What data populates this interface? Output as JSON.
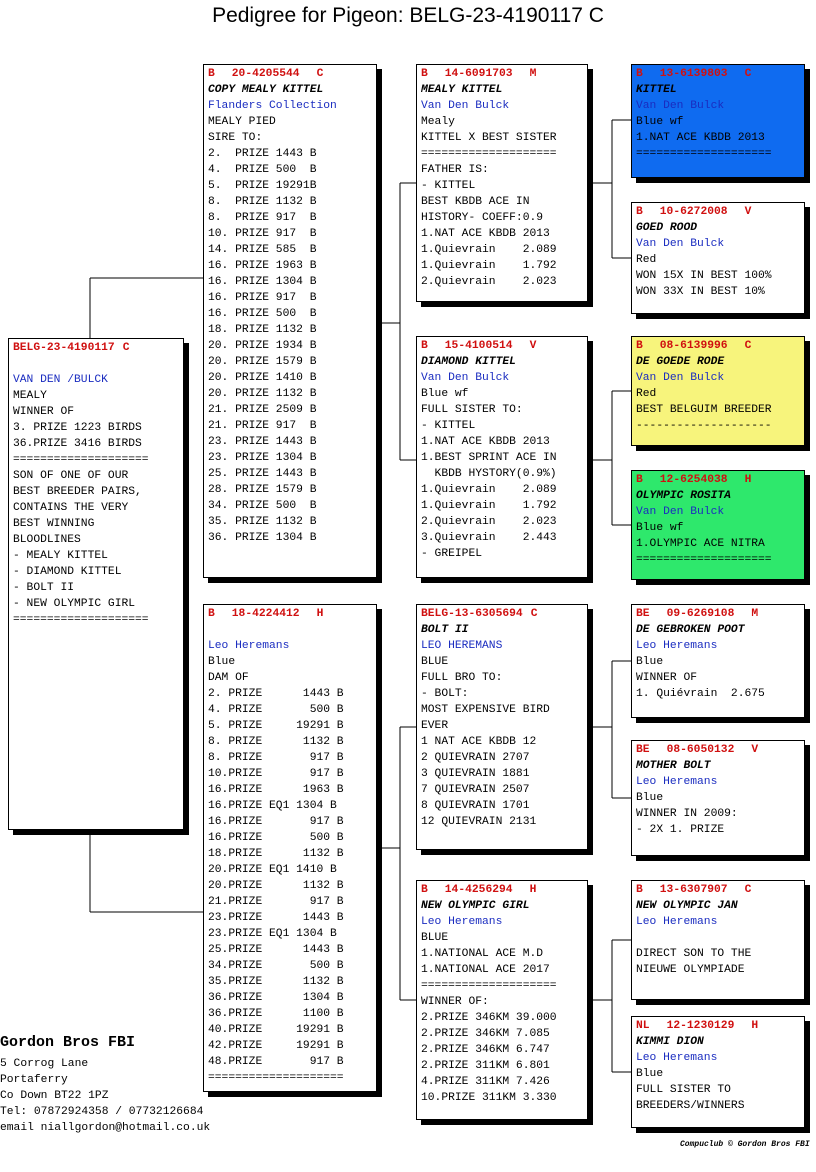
{
  "title": "Pedigree for Pigeon: BELG-23-4190117 C",
  "boxes": [
    {
      "header": [
        "BELG-23-4190117",
        "C"
      ],
      "owner": "VAN DEN /BULCK",
      "lines": [
        "MEALY",
        "WINNER OF",
        "3. PRIZE 1223 BIRDS",
        "36.PRIZE 3416 BIRDS",
        "====================",
        "SON OF ONE OF OUR",
        "BEST BREEDER PAIRS,",
        "CONTAINS THE VERY",
        "BEST WINNING",
        "BLOODLINES",
        "- MEALY KITTEL",
        "- DIAMOND KITTEL",
        "- BOLT II",
        "- NEW OLYMPIC GIRL",
        "===================="
      ]
    },
    {
      "header": [
        "B",
        "20-4205544",
        "C"
      ],
      "name": "COPY MEALY KITTEL",
      "owner": "Flanders Collection",
      "lines": [
        "MEALY PIED",
        "SIRE TO:",
        "2.  PRIZE 1443 B",
        "4.  PRIZE 500  B",
        "5.  PRIZE 19291B",
        "8.  PRIZE 1132 B",
        "8.  PRIZE 917  B",
        "10. PRIZE 917  B",
        "14. PRIZE 585  B",
        "16. PRIZE 1963 B",
        "16. PRIZE 1304 B",
        "16. PRIZE 917  B",
        "16. PRIZE 500  B",
        "18. PRIZE 1132 B",
        "20. PRIZE 1934 B",
        "20. PRIZE 1579 B",
        "20. PRIZE 1410 B",
        "20. PRIZE 1132 B",
        "21. PRIZE 2509 B",
        "21. PRIZE 917  B",
        "23. PRIZE 1443 B",
        "23. PRIZE 1304 B",
        "25. PRIZE 1443 B",
        "28. PRIZE 1579 B",
        "34. PRIZE 500  B",
        "35. PRIZE 1132 B",
        "36. PRIZE 1304 B"
      ]
    },
    {
      "header": [
        "B",
        "18-4224412",
        "H"
      ],
      "owner": "Leo Heremans",
      "lines": [
        "Blue",
        "DAM OF",
        "2. PRIZE      1443 B",
        "4. PRIZE       500 B",
        "5. PRIZE     19291 B",
        "8. PRIZE      1132 B",
        "8. PRIZE       917 B",
        "10.PRIZE       917 B",
        "16.PRIZE      1963 B",
        "16.PRIZE EQ1 1304 B",
        "16.PRIZE       917 B",
        "16.PRIZE       500 B",
        "18.PRIZE      1132 B",
        "20.PRIZE EQ1 1410 B",
        "20.PRIZE      1132 B",
        "21.PRIZE       917 B",
        "23.PRIZE      1443 B",
        "23.PRIZE EQ1 1304 B",
        "25.PRIZE      1443 B",
        "34.PRIZE       500 B",
        "35.PRIZE      1132 B",
        "36.PRIZE      1304 B",
        "36.PRIZE      1100 B",
        "40.PRIZE     19291 B",
        "42.PRIZE     19291 B",
        "48.PRIZE       917 B",
        "===================="
      ]
    },
    {
      "header": [
        "B",
        "14-6091703",
        "M"
      ],
      "name": "MEALY KITTEL",
      "owner": "Van Den Bulck",
      "lines": [
        "Mealy",
        "KITTEL X BEST SISTER",
        "====================",
        "FATHER IS:",
        "- KITTEL",
        "BEST KBDB ACE IN",
        "HISTORY- COEFF:0.9",
        "1.NAT ACE KBDB 2013",
        "1.Quievrain    2.089",
        "1.Quievrain    1.792",
        "2.Quievrain    2.023"
      ]
    },
    {
      "header": [
        "B",
        "15-4100514",
        "V"
      ],
      "name": "DIAMOND KITTEL",
      "owner": "Van Den Bulck",
      "lines": [
        "Blue wf",
        "FULL SISTER TO:",
        "- KITTEL",
        "1.NAT ACE KBDB 2013",
        "1.BEST SPRINT ACE IN",
        "  KBDB HYSTORY(0.9%)",
        "1.Quievrain    2.089",
        "1.Quievrain    1.792",
        "2.Quievrain    2.023",
        "3.Quievrain    2.443",
        "- GREIPEL"
      ]
    },
    {
      "header": [
        "BELG-13-6305694",
        "C"
      ],
      "name": "BOLT II",
      "owner": "LEO HEREMANS",
      "lines": [
        "BLUE",
        "FULL BRO TO:",
        "- BOLT:",
        "MOST EXPENSIVE BIRD",
        "EVER",
        "1 NAT ACE KBDB 12",
        "2 QUIEVRAIN 2707",
        "3 QUIEVRAIN 1881",
        "7 QUIEVRAIN 2507",
        "8 QUIEVRAIN 1701",
        "12 QUIEVRAIN 2131"
      ]
    },
    {
      "header": [
        "B",
        "14-4256294",
        "H"
      ],
      "name": "NEW OLYMPIC GIRL",
      "owner": "Leo Heremans",
      "lines": [
        "BLUE",
        "1.NATIONAL ACE M.D",
        "1.NATIONAL ACE 2017",
        "====================",
        "WINNER OF:",
        "2.PRIZE 346KM 39.000",
        "2.PRIZE 346KM 7.085",
        "2.PRIZE 346KM 6.747",
        "2.PRIZE 311KM 6.801",
        "4.PRIZE 311KM 7.426",
        "10.PRIZE 311KM 3.330"
      ]
    },
    {
      "header": [
        "B",
        "13-6139803",
        "C"
      ],
      "name": "KITTEL",
      "owner": "Van Den Bulck",
      "color": "#0f6bf0",
      "lines": [
        "Blue wf",
        "1.NAT ACE KBDB 2013",
        "===================="
      ]
    },
    {
      "header": [
        "B",
        "10-6272008",
        "V"
      ],
      "name": "GOED ROOD",
      "owner": "Van Den Bulck",
      "lines": [
        "Red",
        "WON 15X IN BEST 100%",
        "WON 33X IN BEST 10%"
      ]
    },
    {
      "header": [
        "B",
        "08-6139996",
        "C"
      ],
      "name": "DE GOEDE RODE",
      "owner": "Van Den Bulck",
      "color": "#f7f47c",
      "lines": [
        "Red",
        "BEST BELGUIM BREEDER",
        "--------------------"
      ]
    },
    {
      "header": [
        "B",
        "12-6254038",
        "H"
      ],
      "name": "OLYMPIC ROSITA",
      "owner": "Van Den Bulck",
      "color": "#2ee86c",
      "lines": [
        "Blue wf",
        "1.OLYMPIC ACE NITRA",
        "===================="
      ]
    },
    {
      "header": [
        "BE",
        "09-6269108",
        "M"
      ],
      "name": "DE GEBROKEN POOT",
      "owner": "Leo Heremans",
      "lines": [
        "Blue",
        "WINNER OF",
        "1. Quiévrain  2.675"
      ]
    },
    {
      "header": [
        "BE",
        "08-6050132",
        "V"
      ],
      "name": "MOTHER BOLT",
      "owner": "Leo Heremans",
      "lines": [
        "Blue",
        "WINNER IN 2009:",
        "- 2X 1. PRIZE"
      ]
    },
    {
      "header": [
        "B",
        "13-6307907",
        "C"
      ],
      "name": "NEW OLYMPIC JAN",
      "owner": "Leo Heremans",
      "lines": [
        "DIRECT SON TO THE",
        "NIEUWE OLYMPIADE"
      ]
    },
    {
      "header": [
        "NL",
        "12-1230129",
        "H"
      ],
      "name": "KIMMI DION",
      "owner": "Leo Heremans",
      "lines": [
        "Blue",
        "FULL SISTER TO",
        "BREEDERS/WINNERS"
      ]
    }
  ],
  "breeder": {
    "name": "Gordon Bros FBI",
    "address": [
      "5 Corrog Lane",
      "Portaferry",
      "Co Down BT22 1PZ",
      "Tel: 07872924358 / 07732126684",
      "email niallgordon@hotmail.co.uk"
    ]
  },
  "credit": "Compuclub © Gordon Bros FBI"
}
